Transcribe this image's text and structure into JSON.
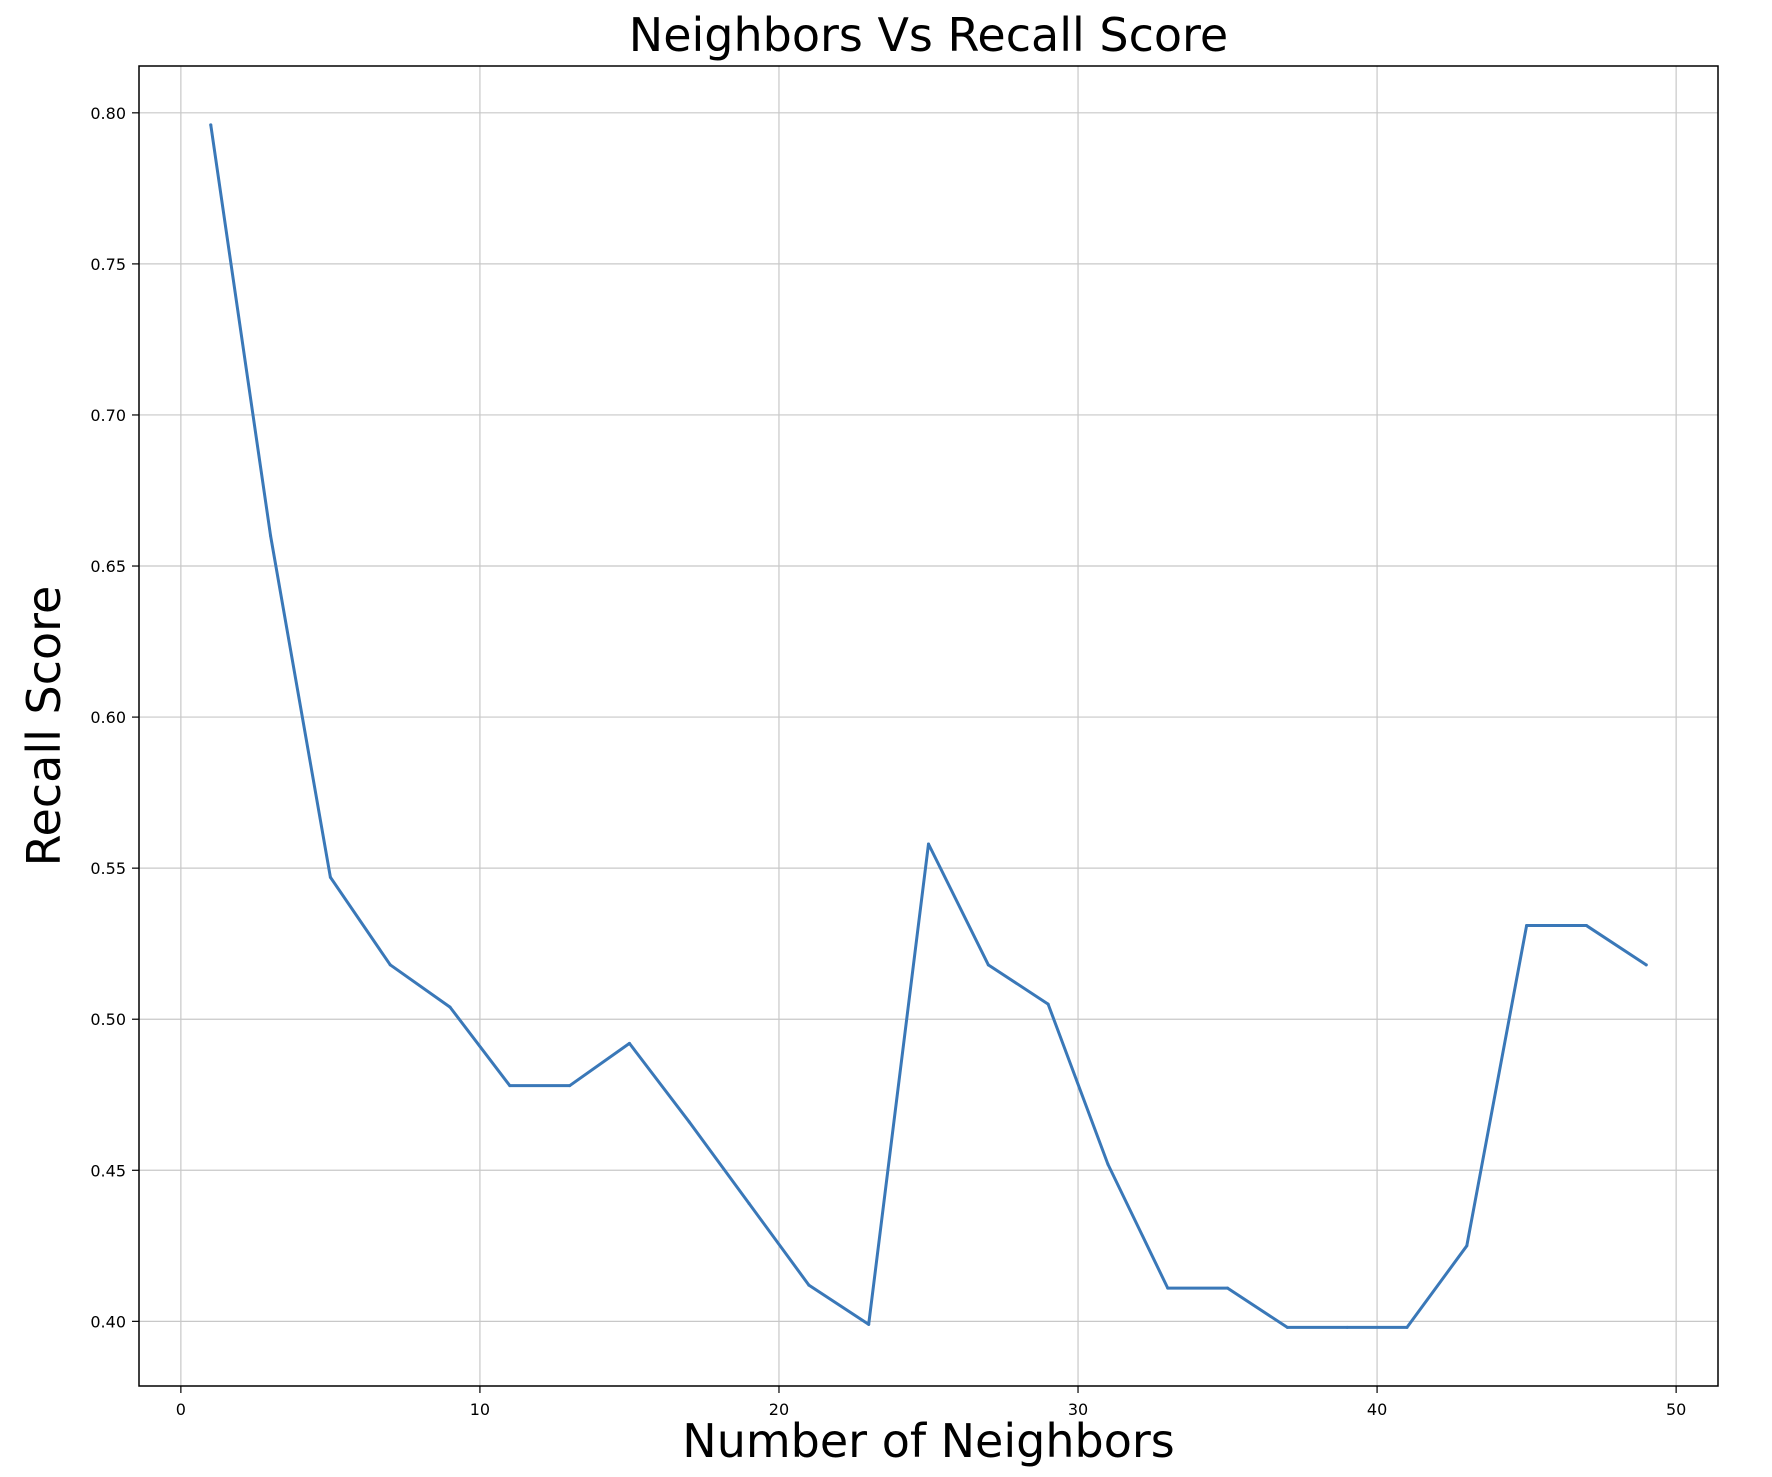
{
  "chart_data": {
    "type": "line",
    "title": "Neighbors Vs Recall Score",
    "xlabel": "Number of Neighbors",
    "ylabel": "Recall Score",
    "xlim": [
      -1.4,
      51.4
    ],
    "ylim": [
      0.3786,
      0.8155
    ],
    "x_ticks": [
      0,
      10,
      20,
      30,
      40,
      50
    ],
    "y_ticks": [
      0.4,
      0.45,
      0.5,
      0.55,
      0.6,
      0.65,
      0.7,
      0.75,
      0.8
    ],
    "x_tick_labels": [
      "0",
      "10",
      "20",
      "30",
      "40",
      "50"
    ],
    "y_tick_labels": [
      "0.40",
      "0.45",
      "0.50",
      "0.55",
      "0.60",
      "0.65",
      "0.70",
      "0.75",
      "0.80"
    ],
    "grid": true,
    "series": [
      {
        "color": "#3a78b8",
        "x": [
          1,
          3,
          5,
          7,
          9,
          11,
          13,
          15,
          17,
          19,
          21,
          23,
          25,
          27,
          29,
          31,
          33,
          35,
          37,
          39,
          41,
          43,
          45,
          47,
          49
        ],
        "y": [
          0.796,
          0.66,
          0.547,
          0.518,
          0.504,
          0.478,
          0.478,
          0.492,
          0.466,
          0.439,
          0.412,
          0.399,
          0.558,
          0.518,
          0.505,
          0.452,
          0.411,
          0.411,
          0.398,
          0.398,
          0.398,
          0.425,
          0.531,
          0.531,
          0.518
        ]
      }
    ]
  }
}
